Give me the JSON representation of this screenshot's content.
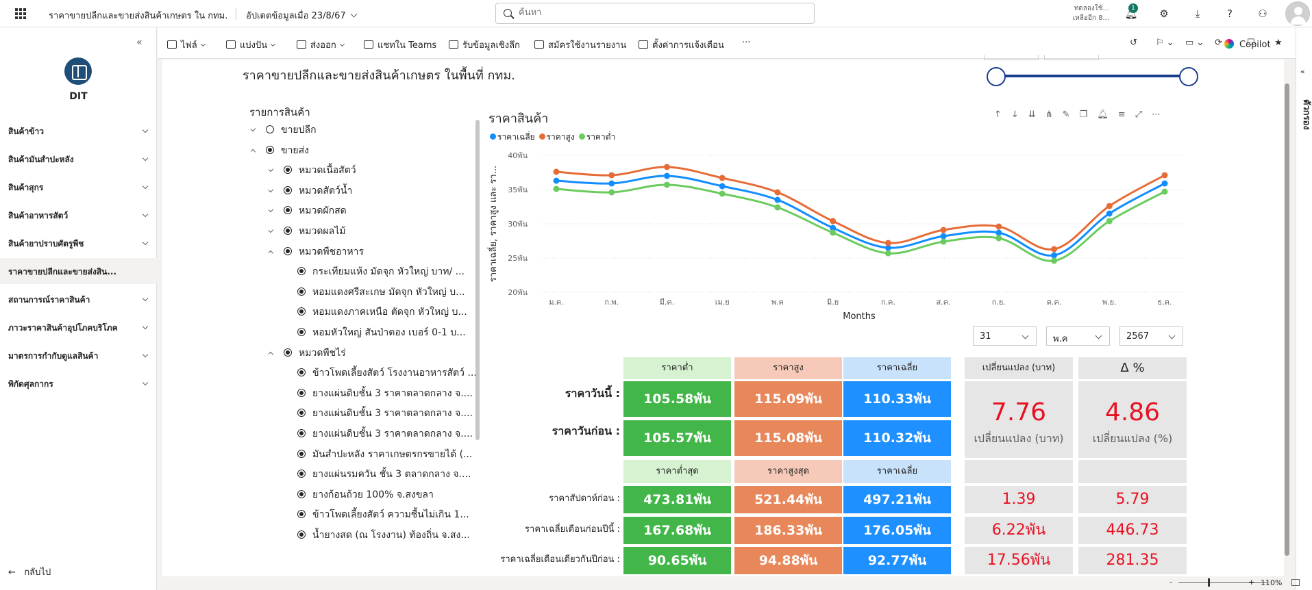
{
  "topbar": {
    "app_title": "ราคาขายปลีกและขายส่งสินค้าเกษตร ใน กทม.",
    "updated": "อัปเดตข้อมูลเมื่อ 23/8/67",
    "search_placeholder": "ค้นหา",
    "trial_line1": "ทดลองใช้...",
    "trial_line2": "เหลืออีก 8...",
    "notification_count": "1"
  },
  "sidebar": {
    "logo_text": "DIT",
    "items": [
      "สินค้าข้าว",
      "สินค้ามันสำปะหลัง",
      "สินค้าสุกร",
      "สินค้าอาหารสัตว์",
      "สินค้ายาปราบศัตรูพืช",
      "ราคาขายปลีกและขายส่งสิน...",
      "สถานการณ์ราคาสินค้า",
      "ภาวะราคาสินค้าอุปโภคบริโภค",
      "มาตรการกำกับดูแลสินค้า",
      "พิกัดศุลกากร"
    ],
    "back_label": "กลับไป"
  },
  "toolbar": {
    "file": "ไฟล์",
    "share": "แบ่งปัน",
    "export": "ส่งออก",
    "teams": "แชทใน Teams",
    "insights": "รับข้อมูลเชิงลึก",
    "subscribe": "สมัครใช้งานรายงาน",
    "alerts": "ตั้งค่าการแจ้งเตือน",
    "more": "···",
    "copilot": "Copilot"
  },
  "right_rail": {
    "label": "ตัวกรอง"
  },
  "report": {
    "title": "ราคาขายปลีกและขายส่งสินค้าเกษตร ในพื้นที่ กทม."
  },
  "slicer": {
    "title": "รายการสินค้า",
    "rows": [
      {
        "label": "ขายปลีก",
        "level": 0,
        "exp": "down",
        "on": false
      },
      {
        "label": "ขายส่ง",
        "level": 0,
        "exp": "up",
        "on": true
      },
      {
        "label": "หมวดเนื้อสัตว์",
        "level": 1,
        "exp": "down",
        "on": true
      },
      {
        "label": "หมวดสัตว์น้ำ",
        "level": 1,
        "exp": "down",
        "on": true
      },
      {
        "label": "หมวดผักสด",
        "level": 1,
        "exp": "down",
        "on": true
      },
      {
        "label": "หมวดผลไม้",
        "level": 1,
        "exp": "down",
        "on": true
      },
      {
        "label": "หมวดพืชอาหาร",
        "level": 1,
        "exp": "up",
        "on": true
      },
      {
        "label": "กระเทียมแห้ง มัดจุก หัวใหญ่ บาท/ ...",
        "level": 2,
        "exp": "",
        "on": true
      },
      {
        "label": "หอมแดงศรีสะเกษ มัดจุก หัวใหญ่ บ...",
        "level": 2,
        "exp": "",
        "on": true
      },
      {
        "label": "หอมแดงภาคเหนือ ตัดจุก หัวใหญ่ บ...",
        "level": 2,
        "exp": "",
        "on": true
      },
      {
        "label": "หอมหัวใหญ่ สันป่าตอง เบอร์ 0-1 บ...",
        "level": 2,
        "exp": "",
        "on": true
      },
      {
        "label": "หมวดพืชไร่",
        "level": 1,
        "exp": "up",
        "on": true
      },
      {
        "label": "ข้าวโพดเลี้ยงสัตว์ โรงงานอาหารสัตว์ ...",
        "level": 2,
        "exp": "",
        "on": true
      },
      {
        "label": "ยางแผ่นดิบชั้น 3 ราคาตลาดกลาง จ....",
        "level": 2,
        "exp": "",
        "on": true
      },
      {
        "label": "ยางแผ่นดิบชั้น 3 ราคาตลาดกลาง จ....",
        "level": 2,
        "exp": "",
        "on": true
      },
      {
        "label": "ยางแผ่นดิบชั้น 3 ราคาตลาดกลาง จ....",
        "level": 2,
        "exp": "",
        "on": true
      },
      {
        "label": "มันสำปะหลัง ราคาเกษตรกรขายได้ (...",
        "level": 2,
        "exp": "",
        "on": true
      },
      {
        "label": "ยางแผ่นรมควัน ชั้น 3 ตลาดกลาง จ....",
        "level": 2,
        "exp": "",
        "on": true
      },
      {
        "label": "ยางก้อนถ้วย 100% จ.สงขลา",
        "level": 2,
        "exp": "",
        "on": true
      },
      {
        "label": "ข้าวโพดเลี้ยงสัตว์ ความชื้นไม่เกิน 1...",
        "level": 2,
        "exp": "",
        "on": true
      },
      {
        "label": "น้ำยางสด (ณ โรงงาน) ท้องถิ่น จ.สง...",
        "level": 2,
        "exp": "",
        "on": true
      }
    ]
  },
  "chart_data": {
    "type": "line",
    "title": "ราคาสินค้า",
    "xlabel": "Months",
    "ylabel": "ราคาเฉลี่ย, ราคาสูง และ รา...",
    "categories": [
      "ม.ค.",
      "ก.พ.",
      "มี.ค.",
      "เม.ย",
      "พ.ค",
      "มิ.ย",
      "ก.ค.",
      "ส.ค.",
      "ก.ย.",
      "ต.ค.",
      "พ.ย.",
      "ธ.ค."
    ],
    "yticks": [
      "20พัน",
      "25พัน",
      "30พัน",
      "35พัน",
      "40พัน"
    ],
    "ylim": [
      20000,
      40000
    ],
    "grid": true,
    "legend_position": "top-left",
    "series": [
      {
        "name": "ราคาเฉลี่ย",
        "color": "#118DFF",
        "values": [
          36300,
          35900,
          37000,
          35500,
          33500,
          29400,
          26500,
          28200,
          28700,
          25400,
          31500,
          35900
        ]
      },
      {
        "name": "ราคาสูง",
        "color": "#E66C37",
        "values": [
          37600,
          37100,
          38300,
          36700,
          34600,
          30400,
          27200,
          29100,
          29600,
          26300,
          32600,
          37100
        ]
      },
      {
        "name": "ราคาต่ำ",
        "color": "#6BCB5E",
        "values": [
          35100,
          34600,
          35700,
          34400,
          32400,
          28700,
          25700,
          27400,
          27900,
          24600,
          30400,
          34700
        ]
      }
    ]
  },
  "filters": {
    "day": "31",
    "month": "พ.ค",
    "year": "2567"
  },
  "table": {
    "headers1": [
      "ราคาต่ำ",
      "ราคาสูง",
      "ราคาเฉลี่ย"
    ],
    "headers2": [
      "ราคาต่ำสุด",
      "ราคาสูงสุด",
      "ราคาเฉลี่ย"
    ],
    "change_headers": [
      "เปลี่ยนแปลง (บาท)",
      "Δ %"
    ],
    "today_label": "ราคาวันนี้ :",
    "prev_label": "ราคาวันก่อน :",
    "today": [
      "105.58พัน",
      "115.09พัน",
      "110.33พัน"
    ],
    "prev": [
      "105.57พัน",
      "115.08พัน",
      "110.32พัน"
    ],
    "change_baht": "7.76",
    "change_baht_label": "เปลี่ยนแปลง (บาท)",
    "change_pct": "4.86",
    "change_pct_label": "เปลี่ยนแปลง (%)",
    "rows2": [
      {
        "label": "ราคาสัปดาห์ก่อน :",
        "values": [
          "473.81พัน",
          "521.44พัน",
          "497.21พัน"
        ],
        "chg": "1.39",
        "pct": "5.79"
      },
      {
        "label": "ราคาเฉลี่ยเดือนก่อนปีนี้ :",
        "values": [
          "167.68พัน",
          "186.33พัน",
          "176.05พัน"
        ],
        "chg": "6.22พัน",
        "pct": "446.73"
      },
      {
        "label": "ราคาเฉลี่ยเดือนเดียวกันปีก่อน :",
        "values": [
          "90.65พัน",
          "94.88พัน",
          "92.77พัน"
        ],
        "chg": "17.56พัน",
        "pct": "281.35"
      }
    ]
  },
  "status": {
    "zoom": "110%"
  },
  "colors": {
    "low": "#43B649",
    "low_hdr": "#D6F2D0",
    "high": "#E8875A",
    "high_hdr": "#F6C9B8",
    "avg": "#1E90FF",
    "avg_hdr": "#C7E2FA",
    "chg_bg": "#E6E6E6",
    "red": "#E81123"
  }
}
